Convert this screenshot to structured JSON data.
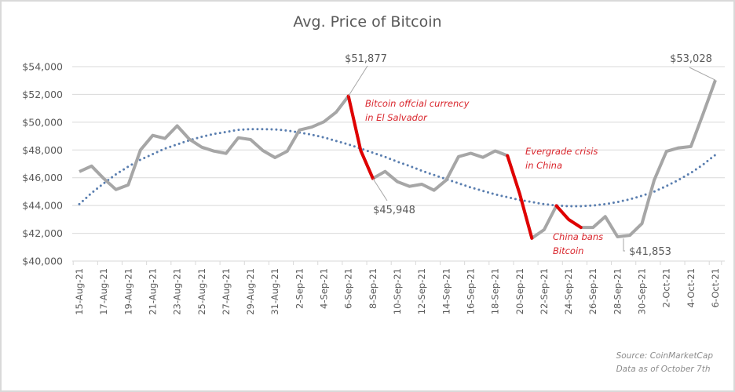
{
  "chart_data": {
    "type": "line",
    "title": "Avg. Price of Bitcoin",
    "xlabel": "",
    "ylabel": "",
    "ylim": [
      40000,
      54000
    ],
    "yticks": [
      40000,
      42000,
      44000,
      46000,
      48000,
      50000,
      52000,
      54000
    ],
    "ytick_labels": [
      "$40,000",
      "$42,000",
      "$44,000",
      "$46,000",
      "$48,000",
      "$50,000",
      "$52,000",
      "$54,000"
    ],
    "grid": true,
    "x": [
      "15-Aug-21",
      "16-Aug-21",
      "17-Aug-21",
      "18-Aug-21",
      "19-Aug-21",
      "20-Aug-21",
      "21-Aug-21",
      "22-Aug-21",
      "23-Aug-21",
      "24-Aug-21",
      "25-Aug-21",
      "26-Aug-21",
      "27-Aug-21",
      "28-Aug-21",
      "29-Aug-21",
      "30-Aug-21",
      "31-Aug-21",
      "1-Sep-21",
      "2-Sep-21",
      "3-Sep-21",
      "4-Sep-21",
      "5-Sep-21",
      "6-Sep-21",
      "7-Sep-21",
      "8-Sep-21",
      "9-Sep-21",
      "10-Sep-21",
      "11-Sep-21",
      "12-Sep-21",
      "13-Sep-21",
      "14-Sep-21",
      "15-Sep-21",
      "16-Sep-21",
      "17-Sep-21",
      "18-Sep-21",
      "19-Sep-21",
      "20-Sep-21",
      "21-Sep-21",
      "22-Sep-21",
      "23-Sep-21",
      "24-Sep-21",
      "25-Sep-21",
      "26-Sep-21",
      "27-Sep-21",
      "28-Sep-21",
      "29-Sep-21",
      "30-Sep-21",
      "1-Oct-21",
      "2-Oct-21",
      "3-Oct-21",
      "4-Oct-21",
      "5-Oct-21",
      "6-Oct-21"
    ],
    "xtick_labels": [
      "15-Aug-21",
      "17-Aug-21",
      "19-Aug-21",
      "21-Aug-21",
      "23-Aug-21",
      "25-Aug-21",
      "27-Aug-21",
      "29-Aug-21",
      "31-Aug-21",
      "2-Sep-21",
      "4-Sep-21",
      "6-Sep-21",
      "8-Sep-21",
      "10-Sep-21",
      "12-Sep-21",
      "14-Sep-21",
      "16-Sep-21",
      "18-Sep-21",
      "20-Sep-21",
      "22-Sep-21",
      "24-Sep-21",
      "26-Sep-21",
      "28-Sep-21",
      "30-Sep-21",
      "2-Oct-21",
      "4-Oct-21",
      "6-Oct-21"
    ],
    "series": [
      {
        "name": "Avg. Price",
        "color": "#a6a6a6",
        "values": [
          46440,
          46840,
          45940,
          45150,
          45480,
          48000,
          49050,
          48830,
          49740,
          48770,
          48200,
          47920,
          47750,
          48880,
          48750,
          47960,
          47450,
          47910,
          49440,
          49650,
          50030,
          50720,
          51877,
          47970,
          45948,
          46450,
          45720,
          45380,
          45530,
          45100,
          45830,
          47520,
          47760,
          47470,
          47930,
          47590,
          44850,
          41650,
          42260,
          43980,
          43000,
          42420,
          42420,
          43200,
          41750,
          41853,
          42700,
          45830,
          47900,
          48150,
          48250,
          50600,
          53028
        ]
      },
      {
        "name": "Trend",
        "style": "dotted",
        "color": "#5b7fb0",
        "type": "polynomial-trendline",
        "values": [
          44100,
          44900,
          45600,
          46250,
          46800,
          47300,
          47700,
          48100,
          48400,
          48700,
          48950,
          49150,
          49300,
          49450,
          49500,
          49500,
          49480,
          49400,
          49250,
          49100,
          48900,
          48650,
          48400,
          48100,
          47800,
          47500,
          47150,
          46850,
          46500,
          46200,
          45900,
          45600,
          45300,
          45050,
          44800,
          44600,
          44400,
          44250,
          44100,
          44000,
          43950,
          43950,
          44000,
          44100,
          44250,
          44450,
          44700,
          45000,
          45400,
          45850,
          46350,
          46950,
          47650
        ]
      }
    ],
    "highlights": [
      {
        "from": "6-Sep-21",
        "to": "8-Sep-21",
        "color": "#e00000",
        "label": "Bitcoin offcial currency\nin El Salvador"
      },
      {
        "from": "19-Sep-21",
        "to": "21-Sep-21",
        "color": "#e00000",
        "label": "Evergrade  crisis\nin China"
      },
      {
        "from": "23-Sep-21",
        "to": "25-Sep-21",
        "color": "#e00000",
        "label": "China bans\nBitcoin"
      }
    ],
    "data_labels": [
      {
        "x": "6-Sep-21",
        "value": 51877,
        "text": "$51,877"
      },
      {
        "x": "8-Sep-21",
        "value": 45948,
        "text": "$45,948"
      },
      {
        "x": "29-Sep-21",
        "value": 41853,
        "text": "$41,853"
      },
      {
        "x": "6-Oct-21",
        "value": 53028,
        "text": "$53,028"
      }
    ],
    "legend": "none"
  },
  "annotations": {
    "el_salvador": [
      "Bitcoin offcial currency",
      "in El Salvador"
    ],
    "evergrande": [
      "Evergrade  crisis",
      "in China"
    ],
    "china_ban": [
      "China bans",
      "Bitcoin"
    ]
  },
  "source": {
    "line1": "Source:  CoinMarketCap",
    "line2": "Data as of October  7th"
  }
}
